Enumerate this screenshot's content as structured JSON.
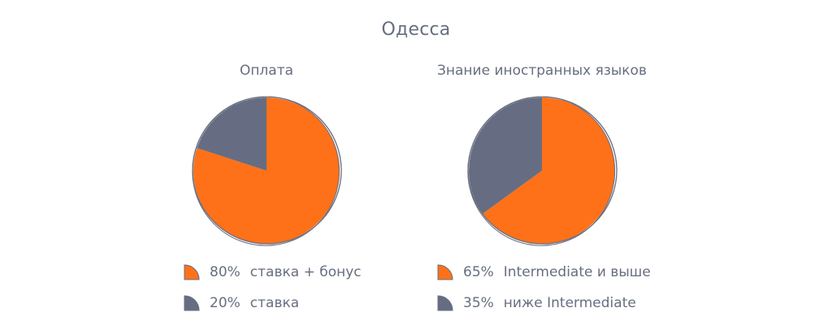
{
  "page": {
    "title": "Одесса"
  },
  "colors": {
    "orange": "#ff7119",
    "slate": "#666d82",
    "outline": "#676e80"
  },
  "chart_data": [
    {
      "type": "pie",
      "title": "Оплата",
      "slices": [
        {
          "label": "ставка + бонус",
          "value": 80,
          "value_label": "80%",
          "color": "#ff7119"
        },
        {
          "label": "ставка",
          "value": 20,
          "value_label": "20%",
          "color": "#666d82"
        }
      ]
    },
    {
      "type": "pie",
      "title": "Знание иностранных языков",
      "slices": [
        {
          "label": "Intermediate и выше",
          "value": 65,
          "value_label": "65%",
          "color": "#ff7119"
        },
        {
          "label": "ниже Intermediate",
          "value": 35,
          "value_label": "35%",
          "color": "#666d82"
        }
      ]
    }
  ]
}
